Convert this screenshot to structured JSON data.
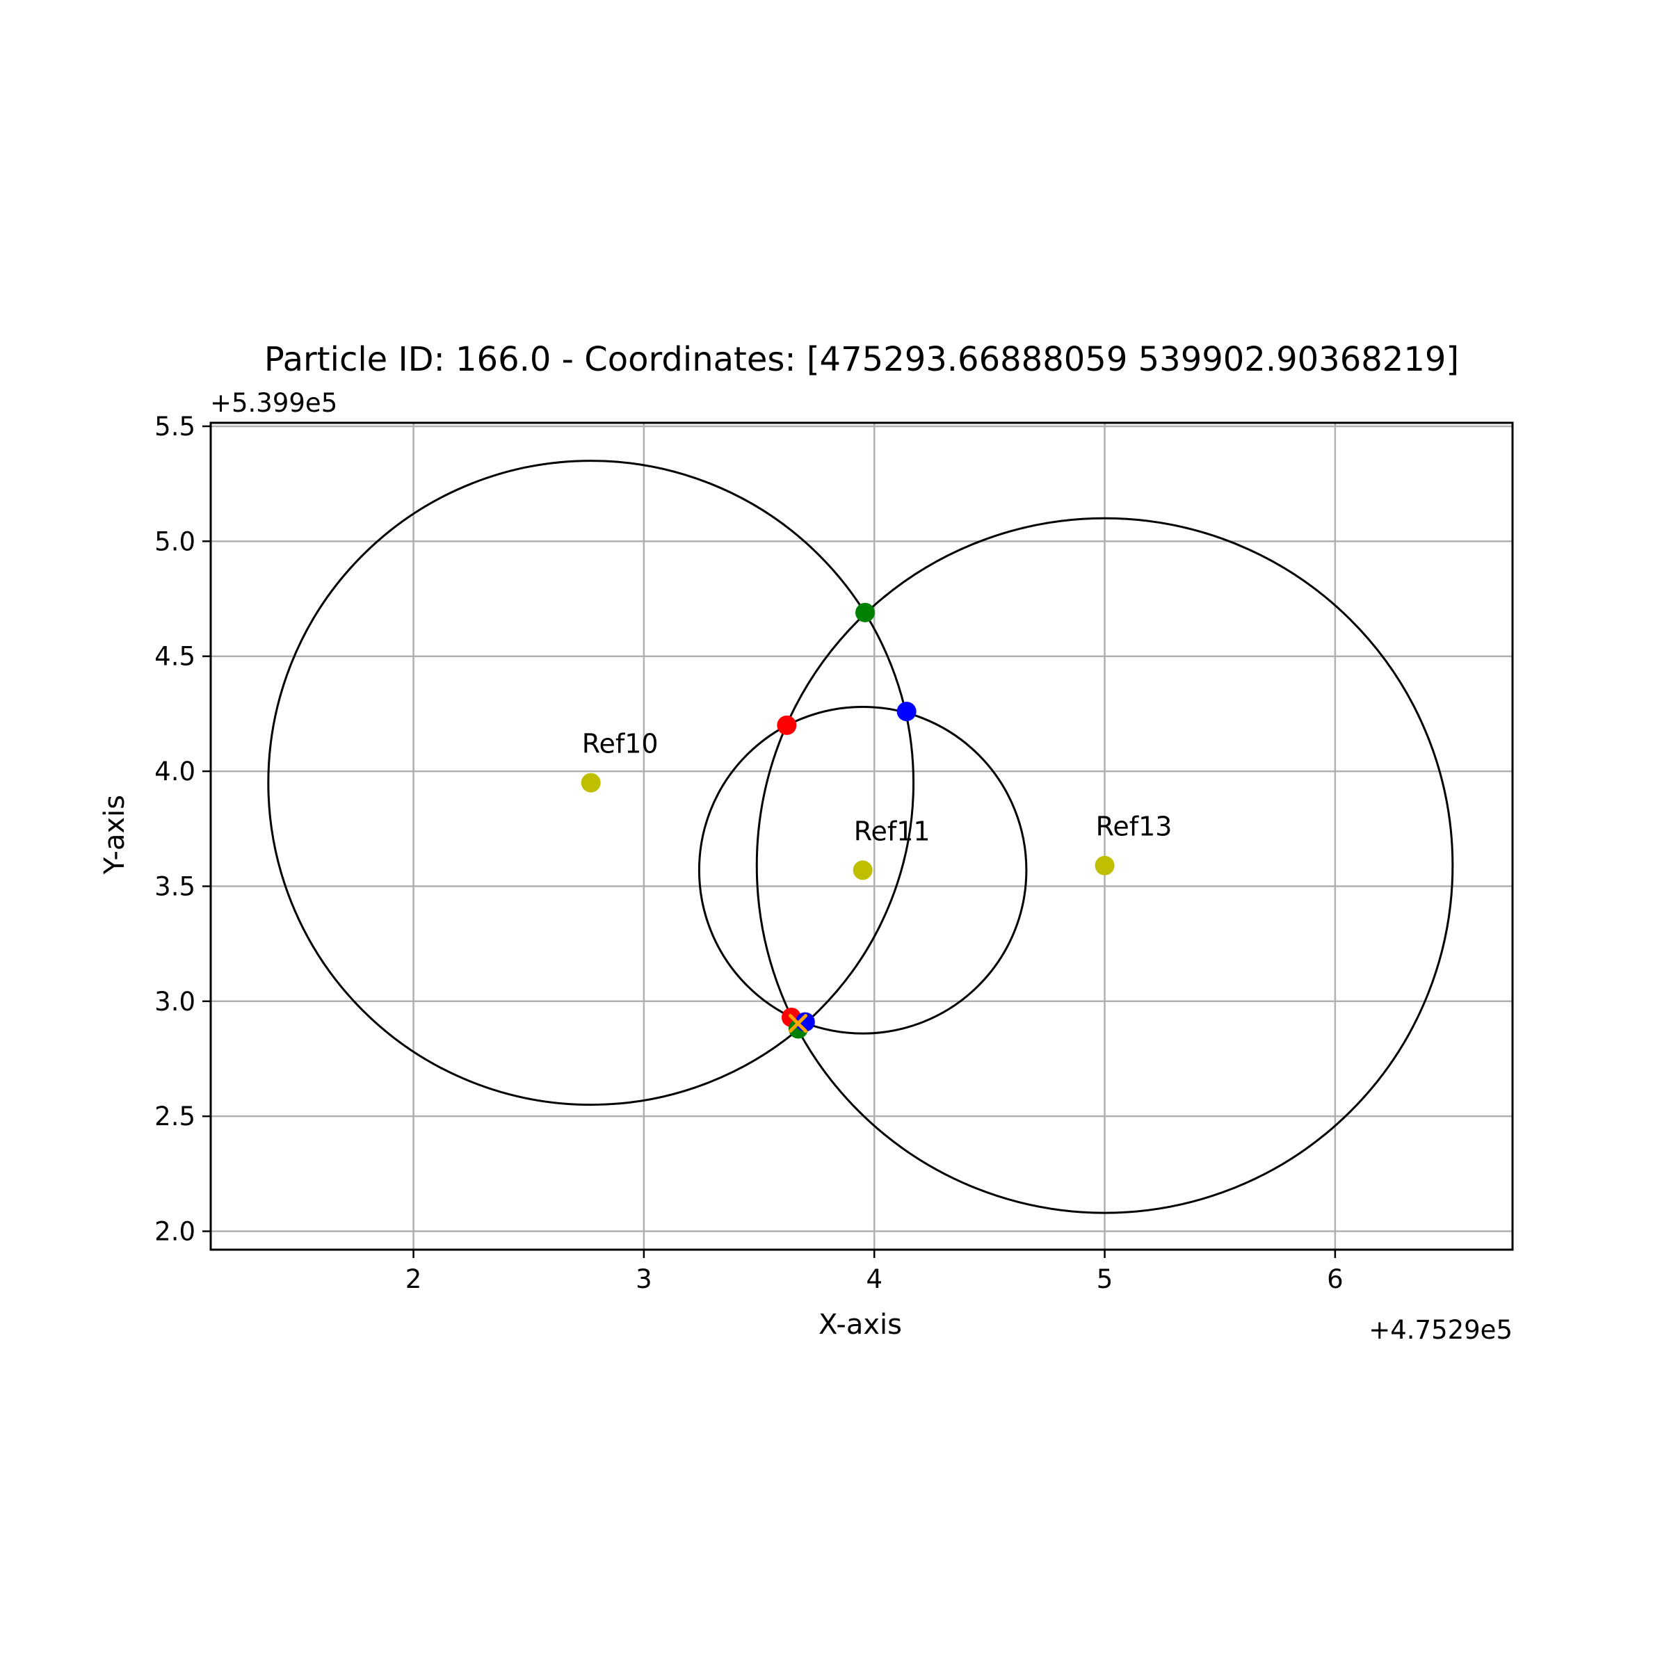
{
  "chart_data": {
    "type": "scatter",
    "title": "Particle ID: 166.0 - Coordinates: [475293.66888059 539902.90368219]",
    "xlabel": "X-axis",
    "ylabel": "Y-axis",
    "x_offset_label": "+4.7529e5",
    "y_offset_label": "+5.399e5",
    "xlim": [
      1.12,
      6.77
    ],
    "ylim": [
      1.92,
      5.515
    ],
    "x_ticks": [
      2,
      3,
      4,
      5,
      6
    ],
    "y_ticks": [
      2.0,
      2.5,
      3.0,
      3.5,
      4.0,
      4.5,
      5.0,
      5.5
    ],
    "x_tick_labels": [
      "2",
      "3",
      "4",
      "5",
      "6"
    ],
    "y_tick_labels": [
      "2.0",
      "2.5",
      "3.0",
      "3.5",
      "4.0",
      "4.5",
      "5.0",
      "5.5"
    ],
    "grid": true,
    "reference_points": [
      {
        "label": "Ref10",
        "x": 2.77,
        "y": 3.95,
        "radius": 1.4,
        "color": "#bfbf00"
      },
      {
        "label": "Ref11",
        "x": 3.95,
        "y": 3.57,
        "radius": 0.71,
        "color": "#bfbf00"
      },
      {
        "label": "Ref13",
        "x": 5.0,
        "y": 3.59,
        "radius": 1.51,
        "color": "#bfbf00"
      }
    ],
    "intersection_points": [
      {
        "x": 3.62,
        "y": 4.2,
        "color": "#ff0000"
      },
      {
        "x": 3.64,
        "y": 2.93,
        "color": "#ff0000"
      },
      {
        "x": 3.96,
        "y": 4.69,
        "color": "#008000"
      },
      {
        "x": 3.67,
        "y": 2.88,
        "color": "#008000"
      },
      {
        "x": 4.14,
        "y": 4.26,
        "color": "#0000ff"
      },
      {
        "x": 3.7,
        "y": 2.91,
        "color": "#0000ff"
      }
    ],
    "estimate": {
      "x": 3.66888059,
      "y": 2.90368219,
      "marker": "x",
      "color": "#ffa500"
    }
  }
}
